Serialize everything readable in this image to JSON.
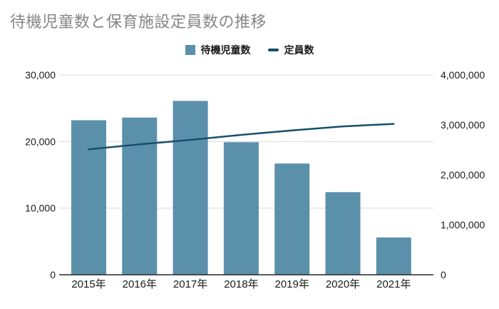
{
  "title": "待機児童数と保育施設定員数の推移",
  "colors": {
    "bar": "#5b90ab",
    "line": "#17506b",
    "title_text": "#868686",
    "axis_text": "#1a1a1a",
    "grid": "#d9d9d9",
    "axis_line": "#262626",
    "background": "#ffffff"
  },
  "legend": [
    {
      "label": "待機児童数",
      "swatch": "square",
      "color": "#5b90ab"
    },
    {
      "label": "定員数",
      "swatch": "line",
      "color": "#17506b"
    }
  ],
  "chart_data": {
    "type": "bar",
    "subtype": "dual-axis bar + line",
    "title": "待機児童数と保育施設定員数の推移",
    "categories": [
      "2015年",
      "2016年",
      "2017年",
      "2018年",
      "2019年",
      "2020年",
      "2021年"
    ],
    "series": [
      {
        "name": "待機児童数",
        "type": "bar",
        "axis": "left",
        "values": [
          23200,
          23600,
          26100,
          19900,
          16700,
          12400,
          5600
        ]
      },
      {
        "name": "定員数",
        "type": "line",
        "axis": "right",
        "values": [
          2510000,
          2610000,
          2700000,
          2800000,
          2890000,
          2970000,
          3020000
        ]
      }
    ],
    "left_axis": {
      "min": 0,
      "max": 30000,
      "ticks": [
        {
          "label": "0",
          "value": 0
        },
        {
          "label": "10,000",
          "value": 10000
        },
        {
          "label": "20,000",
          "value": 20000
        },
        {
          "label": "30,000",
          "value": 30000
        }
      ]
    },
    "right_axis": {
      "min": 0,
      "max": 4000000,
      "ticks": [
        {
          "label": "0",
          "value": 0
        },
        {
          "label": "1,000,000",
          "value": 1000000
        },
        {
          "label": "2,000,000",
          "value": 2000000
        },
        {
          "label": "3,000,000",
          "value": 3000000
        },
        {
          "label": "4,000,000",
          "value": 4000000
        }
      ]
    },
    "grid": true,
    "legend_position": "top-center"
  }
}
